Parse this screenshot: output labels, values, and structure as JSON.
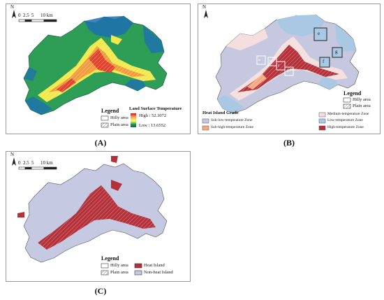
{
  "panels": [
    {
      "caption": "(A)",
      "north": "N",
      "scale": {
        "ticks": [
          "0",
          "2.5",
          "5",
          "10 km"
        ]
      },
      "legend": {
        "title": "Legend",
        "hilly": "Hilly area",
        "plain": "Plain area"
      },
      "lst": {
        "title": "Land Surface Temperature",
        "high": "High : 52.3072",
        "low": "Low : 13.6552"
      }
    },
    {
      "caption": "(B)",
      "north": "N",
      "legend": {
        "title": "Legend",
        "hilly": "Hilly area",
        "plain": "Plain area"
      },
      "grade": {
        "title": "Heat Island Grade",
        "zones": [
          {
            "label": "Sub-low-temperature Zone",
            "color": "#c5c8df"
          },
          {
            "label": "Medium-temperature Zone",
            "color": "#f5dede"
          },
          {
            "label": "Sub-high-temperature Zone",
            "color": "#f4a982"
          },
          {
            "label": "Low-temperature Zone",
            "color": "#a9c8e4"
          },
          {
            "label": "High-temperature Zone",
            "color": "#b5313a"
          }
        ]
      },
      "boxes": [
        "a",
        "b",
        "c",
        "d",
        "e",
        "f",
        "g"
      ]
    },
    {
      "caption": "(C)",
      "north": "N",
      "scale": {
        "ticks": [
          "0",
          "2.5",
          "5",
          "10 km"
        ]
      },
      "legend": {
        "title": "Legend",
        "hilly": "Hilly area",
        "plain": "Plain area",
        "heat": "Heat Island",
        "nonheat": "Non-heat Island",
        "heat_color": "#b5313a",
        "nonheat_color": "#c6c9e2"
      }
    }
  ]
}
